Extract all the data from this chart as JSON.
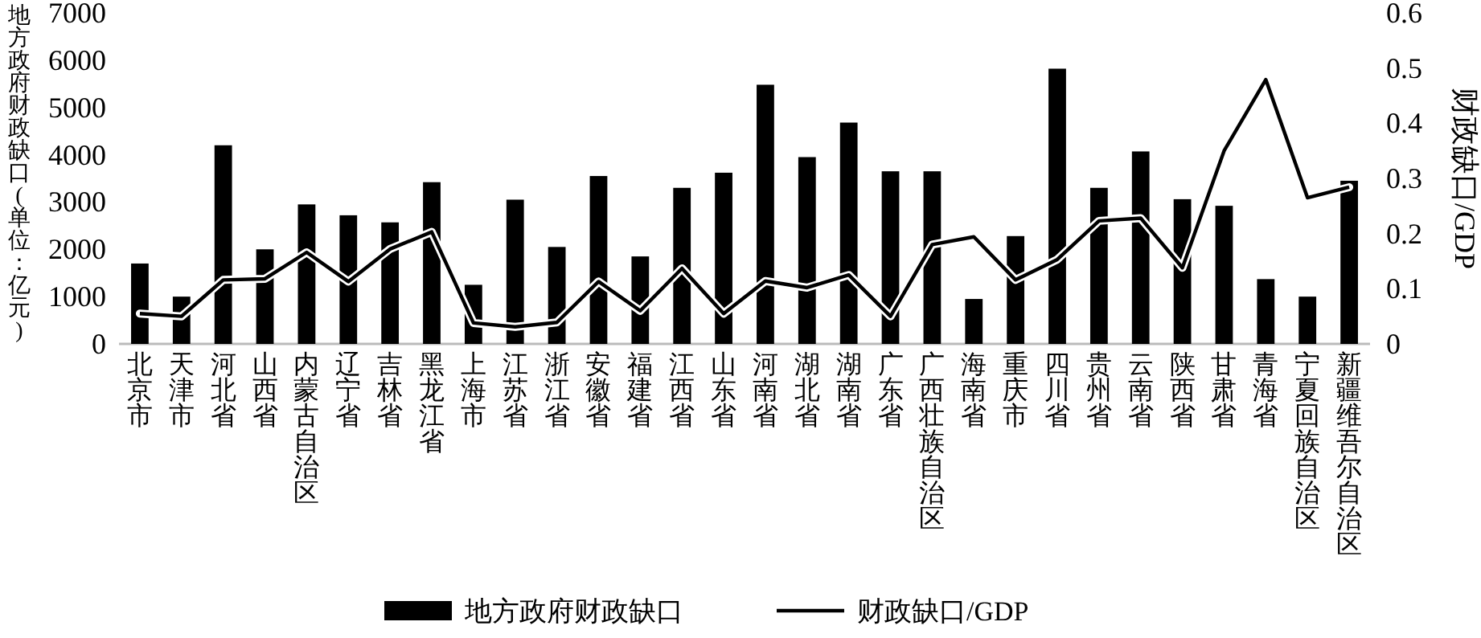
{
  "chart_data": {
    "type": "bar",
    "categories": [
      "北京市",
      "天津市",
      "河北省",
      "山西省",
      "内蒙古自治区",
      "辽宁省",
      "吉林省",
      "黑龙江省",
      "上海市",
      "江苏省",
      "浙江省",
      "安徽省",
      "福建省",
      "江西省",
      "山东省",
      "河南省",
      "湖北省",
      "湖南省",
      "广东省",
      "广西壮族自治区",
      "海南省",
      "重庆市",
      "四川省",
      "贵州省",
      "云南省",
      "陕西省",
      "甘肃省",
      "青海省",
      "宁夏回族自治区",
      "新疆维吾尔自治区"
    ],
    "series": [
      {
        "name": "地方政府财政缺口",
        "color": "#000000",
        "values": [
          1700,
          1000,
          4200,
          2000,
          2950,
          2720,
          2570,
          3420,
          1250,
          3050,
          2050,
          3550,
          1850,
          3300,
          3620,
          5480,
          3950,
          4680,
          3650,
          3650,
          950,
          2280,
          5820,
          3300,
          4070,
          3060,
          2920,
          1370,
          1000,
          3450
        ]
      },
      {
        "name": "财政缺口/GDP",
        "type": "line",
        "axis": "y2",
        "color": "#000000",
        "values": [
          0.055,
          0.05,
          0.116,
          0.118,
          0.166,
          0.113,
          0.172,
          0.203,
          0.038,
          0.031,
          0.039,
          0.113,
          0.06,
          0.137,
          0.055,
          0.114,
          0.102,
          0.125,
          0.05,
          0.18,
          0.194,
          0.116,
          0.153,
          0.223,
          0.228,
          0.138,
          0.35,
          0.479,
          0.265,
          0.284
        ]
      }
    ],
    "ylabel": "地方政府财政缺口(单位：亿元)",
    "y2label": "财政缺口/GDP",
    "ylim": [
      0,
      7000
    ],
    "yticks": [
      0,
      1000,
      2000,
      3000,
      4000,
      5000,
      6000,
      7000
    ],
    "y2lim": [
      0,
      0.6
    ],
    "y2ticks": [
      0,
      0.1,
      0.2,
      0.3,
      0.4,
      0.5,
      0.6
    ],
    "legend": "bottom",
    "grid": false
  }
}
